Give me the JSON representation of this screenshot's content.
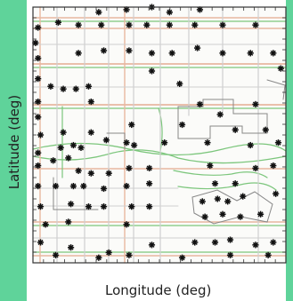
{
  "chart_data": {
    "type": "scatter",
    "title": "",
    "xlabel": "Longitude (deg)",
    "ylabel": "Latitude (deg)",
    "xlim": [
      0,
      100
    ],
    "ylim": [
      0,
      100
    ],
    "grid": false,
    "marker": "asterisk",
    "colors": {
      "marker": "#111111",
      "major_road": "#e8b8a0",
      "minor_road": "#cfcfcf",
      "park_path": "#7cc67c",
      "building": "#888888",
      "sidebar": "#5fd39a",
      "frame": "#333333"
    },
    "points": [
      {
        "x": 26,
        "y": 98
      },
      {
        "x": 37,
        "y": 99
      },
      {
        "x": 47,
        "y": 100
      },
      {
        "x": 54,
        "y": 98
      },
      {
        "x": 66,
        "y": 99
      },
      {
        "x": 2,
        "y": 92
      },
      {
        "x": 10,
        "y": 94
      },
      {
        "x": 18,
        "y": 93
      },
      {
        "x": 27,
        "y": 93
      },
      {
        "x": 38,
        "y": 93
      },
      {
        "x": 45,
        "y": 93
      },
      {
        "x": 54,
        "y": 93
      },
      {
        "x": 64,
        "y": 93
      },
      {
        "x": 75,
        "y": 93
      },
      {
        "x": 88,
        "y": 93
      },
      {
        "x": 1,
        "y": 86
      },
      {
        "x": 2,
        "y": 80
      },
      {
        "x": 18,
        "y": 82
      },
      {
        "x": 28,
        "y": 83
      },
      {
        "x": 38,
        "y": 83
      },
      {
        "x": 47,
        "y": 82
      },
      {
        "x": 55,
        "y": 82
      },
      {
        "x": 65,
        "y": 84
      },
      {
        "x": 75,
        "y": 82
      },
      {
        "x": 86,
        "y": 82
      },
      {
        "x": 95,
        "y": 82
      },
      {
        "x": 47,
        "y": 75
      },
      {
        "x": 98,
        "y": 76
      },
      {
        "x": 2,
        "y": 72
      },
      {
        "x": 7,
        "y": 69
      },
      {
        "x": 12,
        "y": 68
      },
      {
        "x": 17,
        "y": 68
      },
      {
        "x": 22,
        "y": 69
      },
      {
        "x": 2,
        "y": 63
      },
      {
        "x": 2,
        "y": 57
      },
      {
        "x": 23,
        "y": 63
      },
      {
        "x": 58,
        "y": 70
      },
      {
        "x": 66,
        "y": 62
      },
      {
        "x": 74,
        "y": 58
      },
      {
        "x": 88,
        "y": 62
      },
      {
        "x": 3,
        "y": 50
      },
      {
        "x": 12,
        "y": 51
      },
      {
        "x": 23,
        "y": 51
      },
      {
        "x": 39,
        "y": 54
      },
      {
        "x": 59,
        "y": 54
      },
      {
        "x": 80,
        "y": 52
      },
      {
        "x": 92,
        "y": 52
      },
      {
        "x": 2,
        "y": 43
      },
      {
        "x": 11,
        "y": 45
      },
      {
        "x": 16,
        "y": 46
      },
      {
        "x": 19,
        "y": 45
      },
      {
        "x": 29,
        "y": 48
      },
      {
        "x": 37,
        "y": 47
      },
      {
        "x": 40,
        "y": 46
      },
      {
        "x": 52,
        "y": 47
      },
      {
        "x": 69,
        "y": 47
      },
      {
        "x": 86,
        "y": 46
      },
      {
        "x": 97,
        "y": 47
      },
      {
        "x": 2,
        "y": 38
      },
      {
        "x": 8,
        "y": 40
      },
      {
        "x": 14,
        "y": 41
      },
      {
        "x": 18,
        "y": 36
      },
      {
        "x": 23,
        "y": 35
      },
      {
        "x": 30,
        "y": 35
      },
      {
        "x": 38,
        "y": 37
      },
      {
        "x": 46,
        "y": 37
      },
      {
        "x": 70,
        "y": 38
      },
      {
        "x": 88,
        "y": 37
      },
      {
        "x": 95,
        "y": 38
      },
      {
        "x": 2,
        "y": 30
      },
      {
        "x": 9,
        "y": 30
      },
      {
        "x": 16,
        "y": 30
      },
      {
        "x": 20,
        "y": 30
      },
      {
        "x": 28,
        "y": 29
      },
      {
        "x": 37,
        "y": 30
      },
      {
        "x": 46,
        "y": 31
      },
      {
        "x": 72,
        "y": 31
      },
      {
        "x": 80,
        "y": 31
      },
      {
        "x": 3,
        "y": 22
      },
      {
        "x": 15,
        "y": 23
      },
      {
        "x": 22,
        "y": 22
      },
      {
        "x": 28,
        "y": 22
      },
      {
        "x": 39,
        "y": 22
      },
      {
        "x": 46,
        "y": 22
      },
      {
        "x": 67,
        "y": 24
      },
      {
        "x": 73,
        "y": 25
      },
      {
        "x": 77,
        "y": 24
      },
      {
        "x": 83,
        "y": 26
      },
      {
        "x": 96,
        "y": 27
      },
      {
        "x": 5,
        "y": 15
      },
      {
        "x": 14,
        "y": 16
      },
      {
        "x": 37,
        "y": 15
      },
      {
        "x": 68,
        "y": 18
      },
      {
        "x": 75,
        "y": 19
      },
      {
        "x": 82,
        "y": 18
      },
      {
        "x": 90,
        "y": 19
      },
      {
        "x": 3,
        "y": 8
      },
      {
        "x": 15,
        "y": 6
      },
      {
        "x": 30,
        "y": 4
      },
      {
        "x": 47,
        "y": 7
      },
      {
        "x": 64,
        "y": 8
      },
      {
        "x": 72,
        "y": 8
      },
      {
        "x": 78,
        "y": 9
      },
      {
        "x": 88,
        "y": 7
      },
      {
        "x": 95,
        "y": 8
      },
      {
        "x": 9,
        "y": 3
      },
      {
        "x": 26,
        "y": 2
      },
      {
        "x": 38,
        "y": 3
      },
      {
        "x": 59,
        "y": 2
      },
      {
        "x": 78,
        "y": 3
      },
      {
        "x": 93,
        "y": 3
      }
    ]
  }
}
